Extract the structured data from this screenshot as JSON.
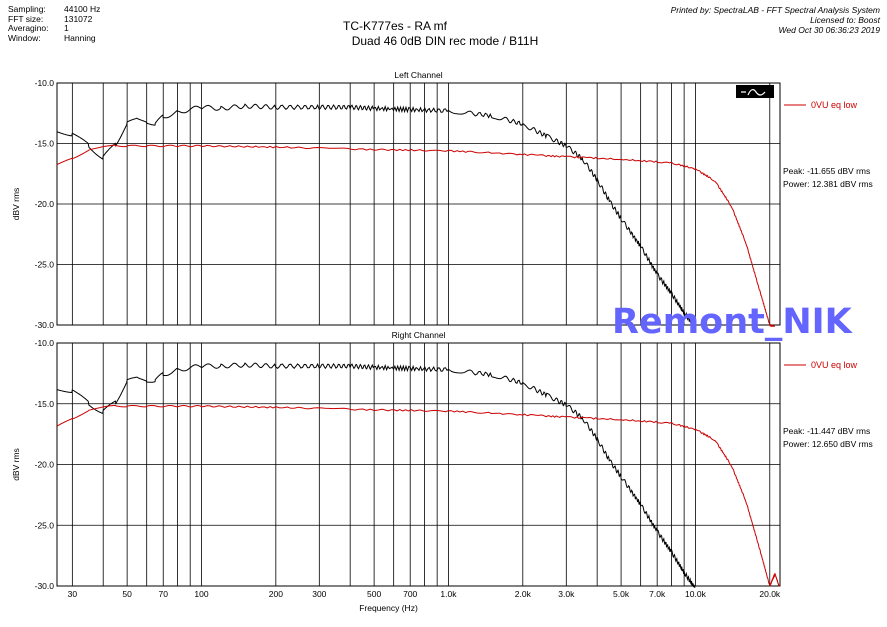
{
  "meta": {
    "sampling_label": "Sampling:",
    "sampling": "44100 Hz",
    "fft_label": "FFT size:",
    "fft": "131072",
    "avg_label": "Averagino:",
    "avg": "1",
    "window_label": "Window:",
    "window": "Hanning"
  },
  "header": {
    "title": "TC-K777es - RA mf",
    "subtitle": "Duad 46  0dB DIN  rec mode   /  B11H",
    "printed_by": "Printed by: SpectraLAB - FFT Spectral Analysis System",
    "licensed": "Licensed to: Boost",
    "date": "Wed Oct 30 06:36:23 2019"
  },
  "watermark": "Remont_NIK",
  "chart_data": [
    {
      "type": "line",
      "title": "Left Channel",
      "xlabel": "",
      "ylabel": "dBV rms",
      "xscale": "log",
      "xlim": [
        26,
        22000
      ],
      "ylim": [
        -30,
        -10
      ],
      "yticks": [
        "-10.0",
        "-15.0",
        "-20.0",
        "-25.0",
        "-30.0"
      ],
      "grid": true,
      "legend": {
        "label": "0VU eq low",
        "placement": "right"
      },
      "peak": "Peak: -11.655 dBV rms",
      "power": "Power: 12.381 dBV rms",
      "series": [
        {
          "name": "",
          "color": "#000000",
          "x": [
            26,
            30,
            35,
            40,
            45,
            50,
            55,
            60,
            65,
            70,
            80,
            100,
            120,
            150,
            200,
            300,
            400,
            500,
            700,
            1000,
            1500,
            2000,
            2500,
            3000,
            3500,
            4000,
            4500,
            5000,
            6000,
            7000,
            8000,
            9000,
            10000
          ],
          "y": [
            -14.0,
            -14.2,
            -15.2,
            -16.2,
            -15.0,
            -13.4,
            -12.8,
            -13.4,
            -13.3,
            -12.8,
            -12.4,
            -12.0,
            -12.1,
            -11.9,
            -12.0,
            -12.0,
            -12.0,
            -12.1,
            -12.2,
            -12.3,
            -12.7,
            -13.4,
            -14.4,
            -15.2,
            -16.3,
            -18.0,
            -19.8,
            -21.2,
            -23.5,
            -25.8,
            -27.4,
            -29.0,
            -30.2
          ]
        },
        {
          "name": "0VU eq low",
          "color": "#cc0000",
          "x": [
            26,
            30,
            35,
            40,
            45,
            50,
            60,
            80,
            100,
            200,
            500,
            1000,
            2000,
            3000,
            5000,
            8000,
            10000,
            12000,
            14000,
            16000,
            18000,
            20000,
            21000
          ],
          "y": [
            -16.8,
            -16.2,
            -15.6,
            -15.2,
            -15.2,
            -15.2,
            -15.2,
            -15.2,
            -15.2,
            -15.3,
            -15.5,
            -15.6,
            -15.9,
            -16.1,
            -16.3,
            -16.6,
            -17.1,
            -18.1,
            -20.2,
            -23.2,
            -26.8,
            -30.0,
            -30.2
          ]
        }
      ]
    },
    {
      "type": "line",
      "title": "Right Channel",
      "xlabel": "Frequency (Hz)",
      "ylabel": "dBV rms",
      "xscale": "log",
      "xlim": [
        26,
        22000
      ],
      "ylim": [
        -30,
        -10
      ],
      "yticks": [
        "-10.0",
        "-15.0",
        "-20.0",
        "-25.0",
        "-30.0"
      ],
      "xticks": [
        {
          "v": 30,
          "l": "30"
        },
        {
          "v": 50,
          "l": "50"
        },
        {
          "v": 70,
          "l": "70"
        },
        {
          "v": 100,
          "l": "100"
        },
        {
          "v": 200,
          "l": "200"
        },
        {
          "v": 300,
          "l": "300"
        },
        {
          "v": 500,
          "l": "500"
        },
        {
          "v": 700,
          "l": "700"
        },
        {
          "v": 1000,
          "l": "1.0k"
        },
        {
          "v": 2000,
          "l": "2.0k"
        },
        {
          "v": 3000,
          "l": "3.0k"
        },
        {
          "v": 5000,
          "l": "5.0k"
        },
        {
          "v": 7000,
          "l": "7.0k"
        },
        {
          "v": 10000,
          "l": "10.0k"
        },
        {
          "v": 20000,
          "l": "20.0k"
        }
      ],
      "grid": true,
      "legend": {
        "label": "0VU eq low",
        "placement": "right"
      },
      "peak": "Peak: -11.447 dBV rms",
      "power": "Power: 12.650 dBV rms",
      "series": [
        {
          "name": "",
          "color": "#000000",
          "x": [
            26,
            30,
            35,
            40,
            45,
            50,
            55,
            60,
            65,
            70,
            80,
            100,
            120,
            150,
            200,
            300,
            400,
            500,
            700,
            1000,
            1500,
            2000,
            2500,
            3000,
            3500,
            4000,
            4500,
            5000,
            6000,
            7000,
            8000,
            9000,
            10000
          ],
          "y": [
            -13.8,
            -13.9,
            -15.0,
            -15.7,
            -14.8,
            -13.2,
            -12.7,
            -13.3,
            -13.0,
            -12.6,
            -12.2,
            -11.9,
            -11.9,
            -11.8,
            -11.9,
            -11.9,
            -11.9,
            -12.0,
            -12.1,
            -12.2,
            -12.6,
            -13.3,
            -14.3,
            -15.1,
            -16.2,
            -17.9,
            -19.7,
            -21.0,
            -23.3,
            -25.5,
            -27.2,
            -28.9,
            -30.2
          ]
        },
        {
          "name": "0VU eq low",
          "color": "#cc0000",
          "x": [
            26,
            30,
            35,
            40,
            45,
            50,
            60,
            80,
            100,
            200,
            500,
            1000,
            2000,
            3000,
            5000,
            8000,
            10000,
            12000,
            14000,
            16000,
            18000,
            20000,
            21000,
            21800
          ],
          "y": [
            -16.9,
            -16.2,
            -15.6,
            -15.2,
            -15.2,
            -15.2,
            -15.2,
            -15.2,
            -15.2,
            -15.3,
            -15.5,
            -15.6,
            -15.9,
            -16.1,
            -16.3,
            -16.6,
            -17.1,
            -18.0,
            -20.1,
            -23.0,
            -26.6,
            -30.0,
            -29.0,
            -30.0
          ]
        }
      ]
    }
  ]
}
